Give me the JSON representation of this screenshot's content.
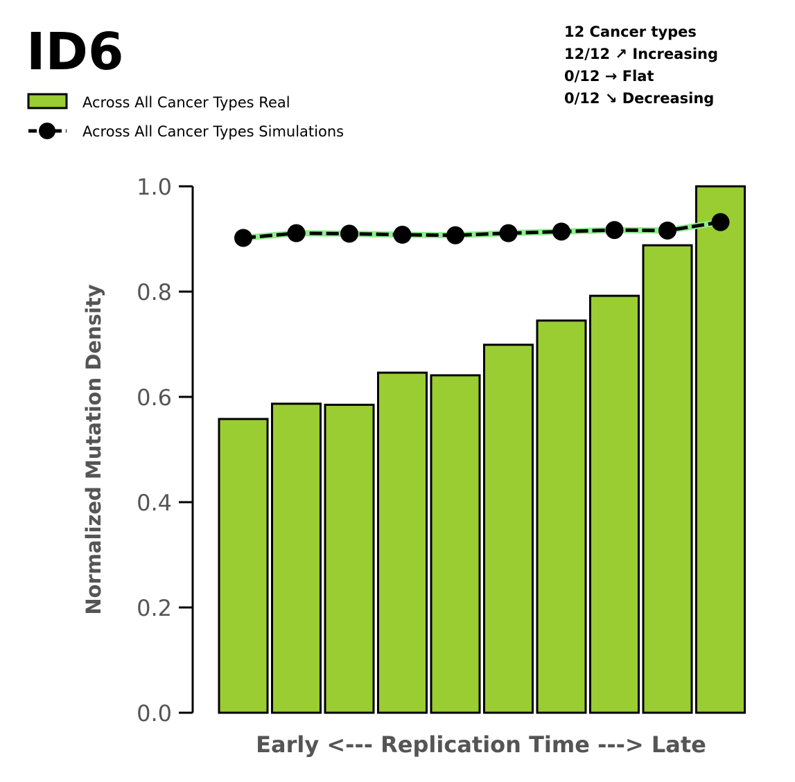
{
  "chart_data": {
    "type": "bar",
    "title": "ID6",
    "xlabel": "Early <--- Replication Time ---> Late",
    "ylabel": "Normalized Mutation Density",
    "ylim": [
      0,
      1.0
    ],
    "yticks": [
      "0.0",
      "0.2",
      "0.4",
      "0.6",
      "0.8",
      "1.0"
    ],
    "x": [
      1,
      2,
      3,
      4,
      5,
      6,
      7,
      8,
      9,
      10
    ],
    "legend_position": "top-left",
    "series": [
      {
        "name": "Across All Cancer Types Real",
        "kind": "bar",
        "color": "#9acd32",
        "values": [
          0.558,
          0.587,
          0.585,
          0.646,
          0.641,
          0.699,
          0.745,
          0.792,
          0.888,
          1.0
        ]
      },
      {
        "name": "Across All Cancer Types Simulations",
        "kind": "line",
        "color": "#000000",
        "band_color": "#90ee90",
        "values": [
          0.902,
          0.911,
          0.91,
          0.908,
          0.907,
          0.911,
          0.914,
          0.917,
          0.916,
          0.932
        ]
      }
    ],
    "annotation_lines": [
      "12 Cancer types",
      "12/12 ↗ Increasing",
      "0/12 → Flat",
      "0/12 ↘ Decreasing"
    ]
  }
}
